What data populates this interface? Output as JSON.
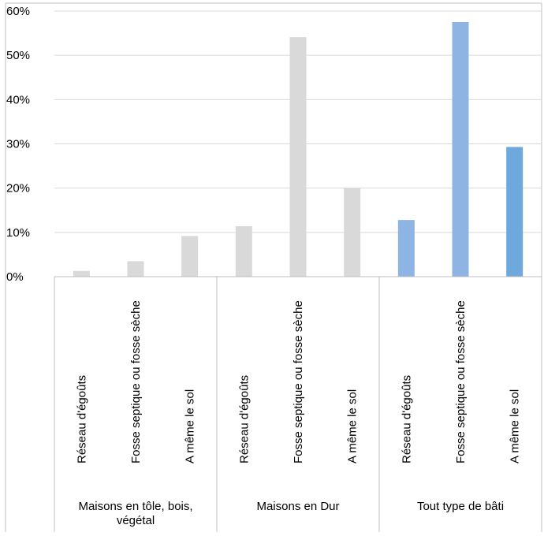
{
  "chart_data": {
    "type": "bar",
    "ylim": [
      0,
      0.6
    ],
    "y_ticks": [
      {
        "value": 0.0,
        "label": "0%"
      },
      {
        "value": 0.1,
        "label": "10%"
      },
      {
        "value": 0.2,
        "label": "20%"
      },
      {
        "value": 0.3,
        "label": "30%"
      },
      {
        "value": 0.4,
        "label": "40%"
      },
      {
        "value": 0.5,
        "label": "50%"
      },
      {
        "value": 0.6,
        "label": "60%"
      }
    ],
    "grid": true,
    "legend": "none",
    "groups": [
      {
        "label": "Maisons en tôle, bois, végétal",
        "label_lines": [
          "Maisons en tôle, bois,",
          "végétal"
        ],
        "color": "#d9d9d9",
        "bars": [
          {
            "category": "Réseau d'égoûts",
            "value": 0.013
          },
          {
            "category": "Fosse septique ou fosse sèche",
            "value": 0.035
          },
          {
            "category": "A même le sol",
            "value": 0.092
          }
        ]
      },
      {
        "label": "Maisons en Dur",
        "label_lines": [
          "Maisons en Dur"
        ],
        "color": "#d9d9d9",
        "bars": [
          {
            "category": "Réseau d'égoûts",
            "value": 0.114
          },
          {
            "category": "Fosse septique ou fosse sèche",
            "value": 0.541
          },
          {
            "category": "A même le sol",
            "value": 0.2
          }
        ]
      },
      {
        "label": "Tout type de bâti",
        "label_lines": [
          "Tout type de bâti"
        ],
        "color": "#8eb4e3",
        "bars": [
          {
            "category": "Réseau d'égoûts",
            "value": 0.128
          },
          {
            "category": "Fosse septique ou fosse sèche",
            "value": 0.575,
            "color": "#8eb4e3"
          },
          {
            "category": "A même le sol",
            "value": 0.293,
            "color": "#6fa8dc"
          }
        ]
      }
    ]
  }
}
